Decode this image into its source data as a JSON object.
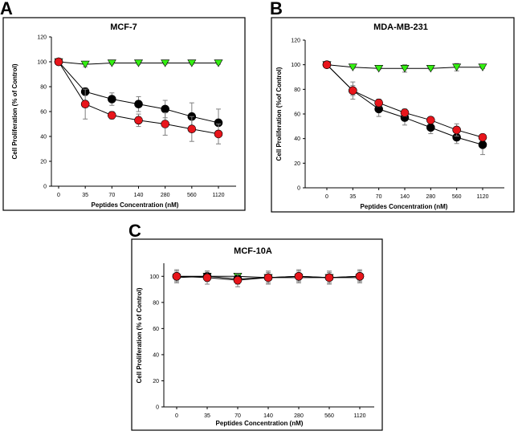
{
  "figure": {
    "colors": {
      "black_series": "#000000",
      "red_series": "#e8151b",
      "green_series": "#33ee11",
      "frame": "#000000",
      "error_bar": "#7f7f7f"
    }
  },
  "chart_data": [
    {
      "type": "line",
      "panel_label": "A",
      "title": "MCF-7",
      "xlabel": "Peptides Concentration (nM)",
      "ylabel": "Cell Proliferation (% of Control)",
      "categories": [
        "0",
        "35",
        "70",
        "140",
        "280",
        "560",
        "1120"
      ],
      "ylim": [
        0,
        120
      ],
      "yticks": [
        "0",
        "20",
        "40",
        "60",
        "80",
        "100",
        "120"
      ],
      "series": [
        {
          "name": "black",
          "marker": "circle",
          "values": [
            100,
            76,
            70,
            66,
            62,
            56,
            51
          ],
          "errors": [
            2,
            3,
            5,
            6,
            7,
            11,
            11
          ]
        },
        {
          "name": "red",
          "marker": "circle",
          "values": [
            100,
            66,
            57,
            53,
            50,
            46,
            42
          ],
          "errors": [
            2,
            12,
            3,
            5,
            9,
            10,
            8
          ]
        },
        {
          "name": "green",
          "marker": "triangle-down",
          "values": [
            100,
            98,
            99,
            99,
            99,
            99,
            99
          ],
          "errors": [
            1,
            2,
            1,
            1,
            1,
            1,
            1
          ]
        }
      ]
    },
    {
      "type": "line",
      "panel_label": "B",
      "title": "MDA-MB-231",
      "xlabel": "Peptides Concentration (nM)",
      "ylabel": "Cell Proliferation (%of Control)",
      "categories": [
        "0",
        "35",
        "70",
        "140",
        "280",
        "560",
        "1120"
      ],
      "ylim": [
        0,
        120
      ],
      "yticks": [
        "0",
        "20",
        "40",
        "60",
        "80",
        "100",
        "120"
      ],
      "series": [
        {
          "name": "black",
          "marker": "circle",
          "values": [
            100,
            79,
            64,
            57,
            49,
            41,
            35
          ],
          "errors": [
            2,
            4,
            6,
            6,
            5,
            5,
            8
          ]
        },
        {
          "name": "red",
          "marker": "circle",
          "values": [
            100,
            79,
            69,
            61,
            55,
            47,
            41
          ],
          "errors": [
            2,
            7,
            3,
            3,
            2,
            5,
            2
          ]
        },
        {
          "name": "green",
          "marker": "triangle-down",
          "values": [
            100,
            98,
            97,
            97,
            97,
            98,
            98
          ],
          "errors": [
            1,
            1,
            1,
            3,
            1,
            3,
            1
          ]
        }
      ]
    },
    {
      "type": "line",
      "panel_label": "C",
      "title": "MCF-10A",
      "xlabel": "Peptides Concentration (nM)",
      "ylabel": "Cell Proliferation (% of Control)",
      "categories": [
        "0",
        "35",
        "70",
        "140",
        "280",
        "560",
        "1120"
      ],
      "ylim": [
        0,
        110
      ],
      "yticks": [
        "0",
        "20",
        "40",
        "60",
        "80",
        "100"
      ],
      "series": [
        {
          "name": "black",
          "marker": "circle",
          "values": [
            100,
            100,
            98,
            99,
            100,
            99,
            100
          ],
          "errors": [
            4,
            4,
            4,
            4,
            4,
            4,
            4
          ]
        },
        {
          "name": "red",
          "marker": "circle",
          "values": [
            100,
            99,
            97,
            99,
            100,
            99,
            100
          ],
          "errors": [
            5,
            5,
            5,
            5,
            5,
            5,
            5
          ]
        },
        {
          "name": "green",
          "marker": "triangle-down",
          "values": [
            99,
            100,
            100,
            99,
            99,
            99,
            99
          ],
          "errors": [
            2,
            2,
            2,
            2,
            2,
            2,
            2
          ]
        }
      ]
    }
  ]
}
